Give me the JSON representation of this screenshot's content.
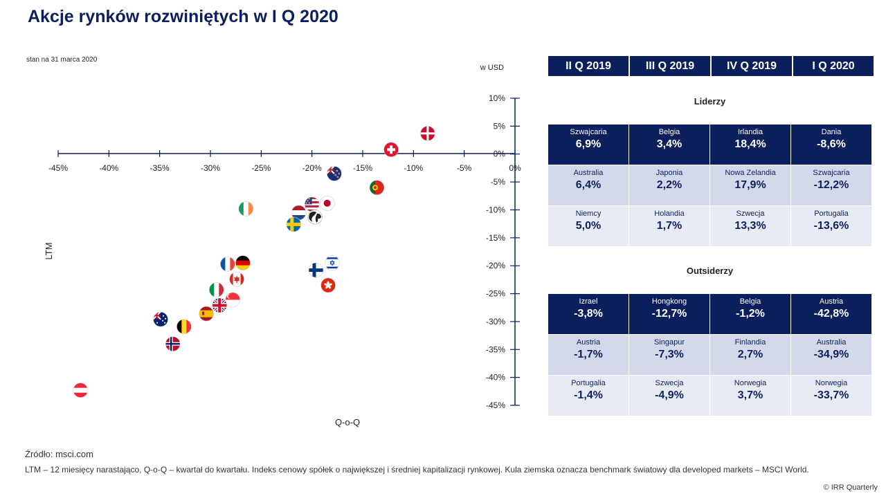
{
  "title": "Akcje rynków rozwiniętych w I Q 2020",
  "as_of": "stan na 31 marca 2020",
  "unit": "w USD",
  "source": "Źródło: msci.com",
  "footnote": "LTM – 12 miesięcy narastająco, Q-o-Q – kwartał do kwartału. Indeks cenowy spółek o największej i średniej kapitalizacji rynkowej. Kula ziemska oznacza benchmark światowy dla developed markets – MSCI World.",
  "copyright": "© IRR Quarterly",
  "chart_data": {
    "type": "scatter",
    "xlabel": "Q-o-Q",
    "ylabel": "LTM",
    "xlim": [
      -45,
      0
    ],
    "ylim": [
      -45,
      10
    ],
    "x_ticks": [
      "-45%",
      "-40%",
      "-35%",
      "-30%",
      "-25%",
      "-20%",
      "-15%",
      "-10%",
      "-5%",
      "0%"
    ],
    "y_ticks": [
      "10%",
      "5%",
      "0%",
      "-5%",
      "-10%",
      "-15%",
      "-20%",
      "-25%",
      "-30%",
      "-35%",
      "-40%",
      "-45%"
    ],
    "points": [
      {
        "flag": "denmark-flag",
        "x": -8.6,
        "y": 3.7
      },
      {
        "flag": "switzerland-flag",
        "x": -12.2,
        "y": 0.8
      },
      {
        "flag": "new-zealand-flag",
        "x": -17.8,
        "y": -3.5
      },
      {
        "flag": "portugal-flag",
        "x": -13.6,
        "y": -6.0
      },
      {
        "flag": "japan-flag",
        "x": -18.5,
        "y": -8.8
      },
      {
        "flag": "usa-flag",
        "x": -20.0,
        "y": -9.0
      },
      {
        "flag": "netherlands-flag",
        "x": -21.3,
        "y": -10.5
      },
      {
        "flag": "world-globe",
        "x": -19.7,
        "y": -11.3
      },
      {
        "flag": "sweden-flag",
        "x": -21.8,
        "y": -12.6
      },
      {
        "flag": "ireland-flag",
        "x": -26.5,
        "y": -9.8
      },
      {
        "flag": "germany-flag",
        "x": -26.8,
        "y": -19.5
      },
      {
        "flag": "france-flag",
        "x": -28.3,
        "y": -19.7
      },
      {
        "flag": "israel-flag",
        "x": -18.0,
        "y": -19.5
      },
      {
        "flag": "finland-flag",
        "x": -19.6,
        "y": -20.8
      },
      {
        "flag": "canada-flag",
        "x": -27.4,
        "y": -22.4
      },
      {
        "flag": "hong-kong-flag",
        "x": -18.4,
        "y": -23.5
      },
      {
        "flag": "italy-flag",
        "x": -29.4,
        "y": -24.3
      },
      {
        "flag": "singapore-flag",
        "x": -27.8,
        "y": -26.1
      },
      {
        "flag": "uk-flag",
        "x": -29.1,
        "y": -27.1
      },
      {
        "flag": "spain-flag",
        "x": -30.4,
        "y": -28.6
      },
      {
        "flag": "australia-flag",
        "x": -34.9,
        "y": -29.6
      },
      {
        "flag": "belgium-flag",
        "x": -32.6,
        "y": -30.9
      },
      {
        "flag": "norway-flag",
        "x": -33.7,
        "y": -34.0
      },
      {
        "flag": "austria-flag",
        "x": -42.8,
        "y": -42.3
      }
    ]
  },
  "table": {
    "headers": [
      "II Q 2019",
      "III Q 2019",
      "IV Q 2019",
      "I Q 2020"
    ],
    "leaders_title": "Liderzy",
    "outsiders_title": "Outsiderzy",
    "leaders": [
      [
        {
          "name": "Szwajcaria",
          "value": "6,9%"
        },
        {
          "name": "Belgia",
          "value": "3,4%"
        },
        {
          "name": "Irlandia",
          "value": "18,4%"
        },
        {
          "name": "Dania",
          "value": "-8,6%"
        }
      ],
      [
        {
          "name": "Australia",
          "value": "6,4%"
        },
        {
          "name": "Japonia",
          "value": "2,2%"
        },
        {
          "name": "Nowa Zelandia",
          "value": "17,9%"
        },
        {
          "name": "Szwajcaria",
          "value": "-12,2%"
        }
      ],
      [
        {
          "name": "Niemcy",
          "value": "5,0%"
        },
        {
          "name": "Holandia",
          "value": "1,7%"
        },
        {
          "name": "Szwecja",
          "value": "13,3%"
        },
        {
          "name": "Portugalia",
          "value": "-13,6%"
        }
      ]
    ],
    "outsiders": [
      [
        {
          "name": "Izrael",
          "value": "-3,8%"
        },
        {
          "name": "Hongkong",
          "value": "-12,7%"
        },
        {
          "name": "Belgia",
          "value": "-1,2%"
        },
        {
          "name": "Austria",
          "value": "-42,8%"
        }
      ],
      [
        {
          "name": "Austria",
          "value": "-1,7%"
        },
        {
          "name": "Singapur",
          "value": "-7,3%"
        },
        {
          "name": "Finlandia",
          "value": "2,7%"
        },
        {
          "name": "Australia",
          "value": "-34,9%"
        }
      ],
      [
        {
          "name": "Portugalia",
          "value": "-1,4%"
        },
        {
          "name": "Szwecja",
          "value": "-4,9%"
        },
        {
          "name": "Norwegia",
          "value": "3,7%"
        },
        {
          "name": "Norwegia",
          "value": "-33,7%"
        }
      ]
    ]
  }
}
